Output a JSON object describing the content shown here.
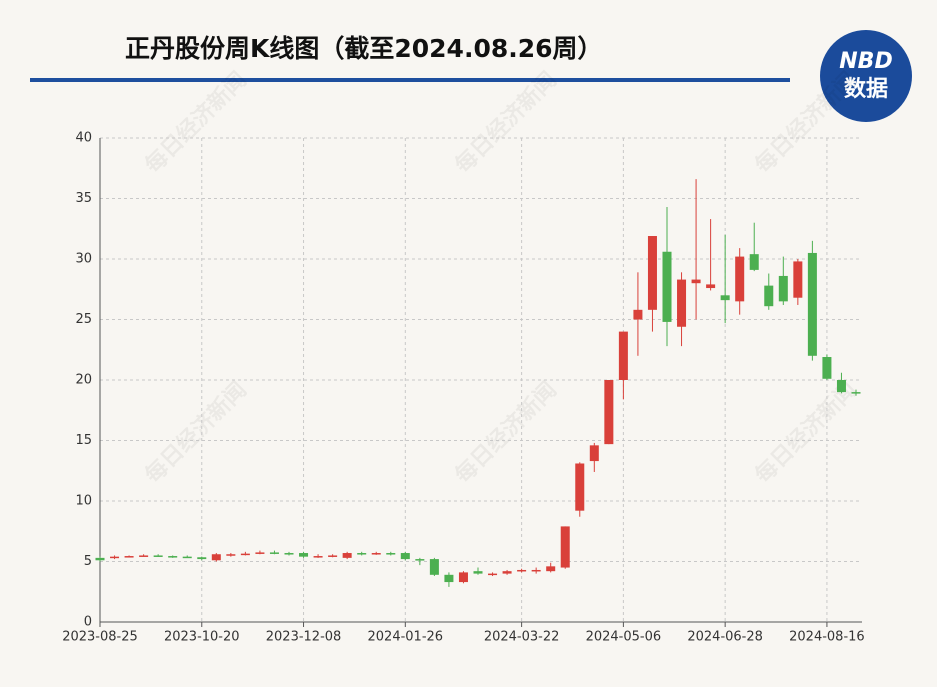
{
  "chart_data": {
    "type": "candlestick",
    "title": "正丹股份周K线图（截至2024.08.26周）",
    "categories": [
      "2023-08-25",
      null,
      null,
      null,
      null,
      null,
      null,
      "2023-10-20",
      null,
      null,
      null,
      null,
      null,
      null,
      "2023-12-08",
      null,
      null,
      null,
      null,
      null,
      null,
      "2024-01-26",
      null,
      null,
      null,
      null,
      null,
      null,
      null,
      "2024-03-22",
      null,
      null,
      null,
      null,
      null,
      null,
      "2024-05-06",
      null,
      null,
      null,
      null,
      null,
      null,
      "2024-06-28",
      null,
      null,
      null,
      null,
      null,
      null,
      "2024-08-16",
      null,
      null
    ],
    "open": [
      5.3,
      5.3,
      5.4,
      5.45,
      5.5,
      5.45,
      5.4,
      5.35,
      5.1,
      5.5,
      5.6,
      5.65,
      5.75,
      5.7,
      5.7,
      5.4,
      5.45,
      5.3,
      5.7,
      5.65,
      5.7,
      5.7,
      5.2,
      5.2,
      3.9,
      3.3,
      4.2,
      3.9,
      4.0,
      4.2,
      4.2,
      4.2,
      4.5,
      9.2,
      13.3,
      14.7,
      20,
      25,
      25.8,
      30.6,
      24.4,
      28,
      27.6,
      27,
      26.5,
      30.4,
      27.8,
      28.6,
      26.8,
      30.5,
      21.9,
      20,
      19
    ],
    "high": [
      5.4,
      5.5,
      5.5,
      5.6,
      5.6,
      5.5,
      5.5,
      5.4,
      5.7,
      5.7,
      5.8,
      5.9,
      5.9,
      5.8,
      5.8,
      5.6,
      5.6,
      5.8,
      5.8,
      5.8,
      5.8,
      5.8,
      5.3,
      5.3,
      4.1,
      4.2,
      4.5,
      4.1,
      4.3,
      4.4,
      4.5,
      4.9,
      7.9,
      13.2,
      14.8,
      20,
      24,
      28.9,
      31.9,
      34.3,
      28.9,
      36.6,
      33.3,
      32,
      30.9,
      33,
      28.8,
      30.2,
      30,
      31.5,
      22.1,
      20.6,
      19.2
    ],
    "low": [
      5.0,
      5.2,
      5.35,
      5.4,
      5.4,
      5.3,
      5.3,
      5.1,
      5.0,
      5.4,
      5.5,
      5.6,
      5.6,
      5.5,
      5.3,
      5.3,
      5.35,
      5.2,
      5.5,
      5.55,
      5.5,
      5.1,
      4.7,
      3.8,
      2.9,
      3.2,
      3.9,
      3.8,
      3.9,
      4.1,
      4.0,
      4.1,
      4.4,
      8.7,
      12.4,
      14.7,
      18.4,
      22,
      24,
      22.8,
      22.8,
      25,
      27.4,
      24.7,
      25.4,
      29,
      25.8,
      26.2,
      26.2,
      21.6,
      20,
      18.9,
      18.7
    ],
    "close": [
      5.1,
      5.4,
      5.45,
      5.5,
      5.45,
      5.4,
      5.35,
      5.2,
      5.6,
      5.6,
      5.65,
      5.75,
      5.7,
      5.6,
      5.4,
      5.45,
      5.5,
      5.7,
      5.65,
      5.7,
      5.6,
      5.2,
      5.1,
      3.9,
      3.3,
      4.1,
      4.0,
      4.0,
      4.2,
      4.3,
      4.3,
      4.6,
      7.9,
      13.1,
      14.6,
      20,
      24,
      25.8,
      31.9,
      24.8,
      28.3,
      28.3,
      27.9,
      26.6,
      30.2,
      29.1,
      26.1,
      26.5,
      29.8,
      22,
      20.1,
      19,
      18.9
    ],
    "up_color": "#d9403a",
    "down_color": "#4caf50",
    "ylim": [
      0,
      40
    ],
    "yticks": [
      0,
      5,
      10,
      15,
      20,
      25,
      30,
      35,
      40
    ],
    "grid": true
  },
  "logo": {
    "top": "NBD",
    "bottom": "数据"
  },
  "watermark": "每日经济新闻"
}
